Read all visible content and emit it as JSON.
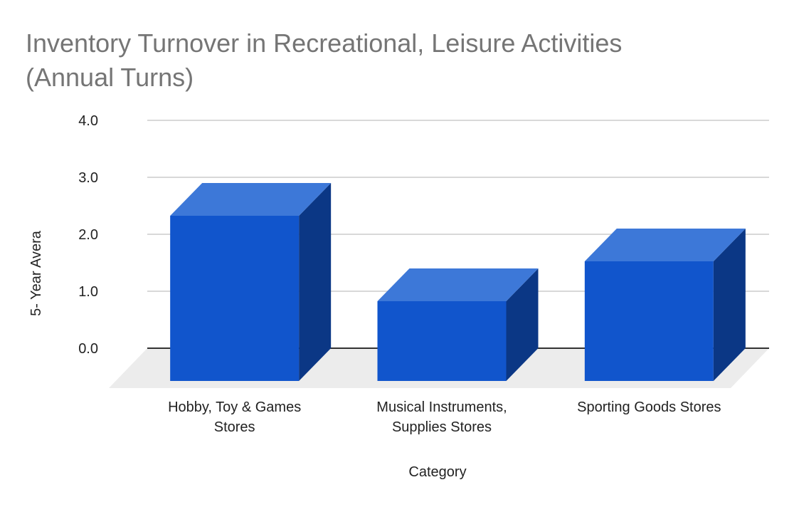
{
  "chart_data": {
    "type": "bar",
    "style": "3d",
    "title_lines": [
      "Inventory Turnover in Recreational, Leisure Activities",
      "(Annual Turns)"
    ],
    "xlabel": "Category",
    "ylabel": "5- Year Avera",
    "ylim": [
      0,
      4.0
    ],
    "yticks": [
      "0.0",
      "1.0",
      "2.0",
      "3.0",
      "4.0"
    ],
    "grid": true,
    "categories": [
      [
        "Hobby, Toy & Games",
        "Stores"
      ],
      [
        "Musical Instruments,",
        "Supplies Stores"
      ],
      [
        "Sporting Goods Stores"
      ]
    ],
    "values": [
      2.9,
      1.4,
      2.1
    ],
    "colors": {
      "bar_front": "#1155cc",
      "bar_top": "#3d78d8",
      "bar_side": "#0b3785",
      "floor": "#ececec",
      "grid": "#cccccc",
      "axis": "#333333",
      "title": "#757575",
      "text": "#222222"
    }
  }
}
